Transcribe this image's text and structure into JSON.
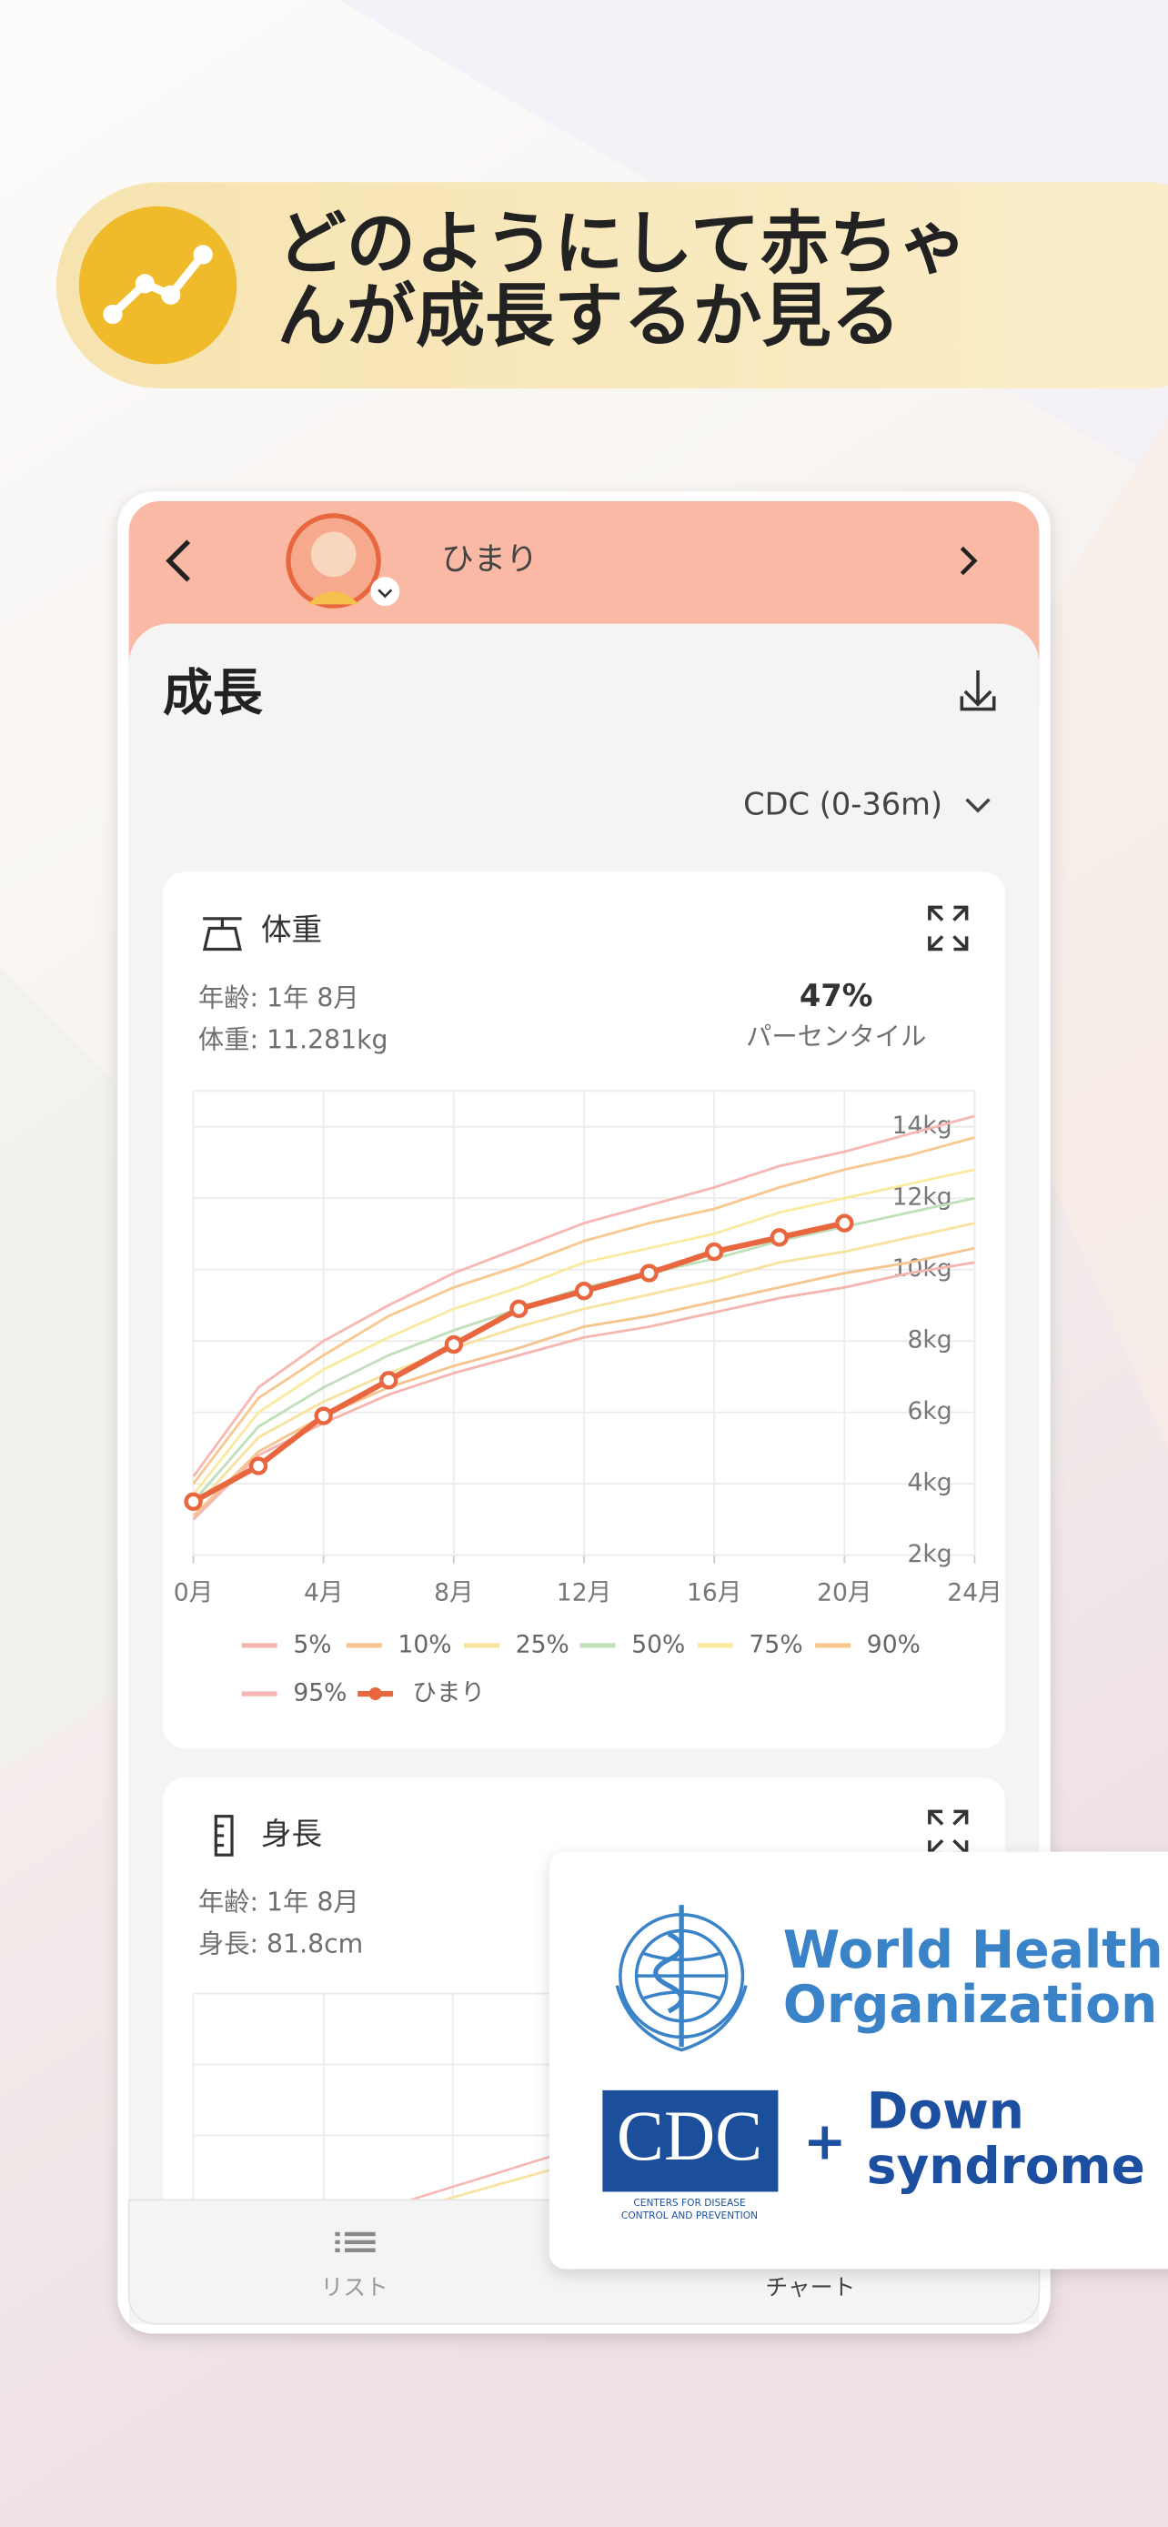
{
  "banner": {
    "line1": "どのようにして赤ちゃ",
    "line2": "んが成長するか見る"
  },
  "header": {
    "child_name": "ひまり"
  },
  "section": {
    "title": "成長",
    "standard": "CDC (0-36m)"
  },
  "weight_card": {
    "title": "体重",
    "age": "年齢: 1年 8月",
    "weight": "体重: 11.281kg",
    "percentile": "47%",
    "percentile_label": "パーセンタイル"
  },
  "chart_data": {
    "type": "line",
    "x": [
      0,
      2,
      4,
      6,
      8,
      10,
      12,
      14,
      16,
      18,
      20,
      22,
      24
    ],
    "xlim": [
      0,
      24
    ],
    "xticks": [
      {
        "value": 0,
        "label": "0月"
      },
      {
        "value": 4,
        "label": "4月"
      },
      {
        "value": 8,
        "label": "8月"
      },
      {
        "value": 12,
        "label": "12月"
      },
      {
        "value": 16,
        "label": "16月"
      },
      {
        "value": 20,
        "label": "20月"
      },
      {
        "value": 24,
        "label": "24月"
      }
    ],
    "ylim": [
      2,
      15
    ],
    "yticks": [
      {
        "value": 2,
        "label": "2kg"
      },
      {
        "value": 4,
        "label": "4kg"
      },
      {
        "value": 6,
        "label": "6kg"
      },
      {
        "value": 8,
        "label": "8kg"
      },
      {
        "value": 10,
        "label": "10kg"
      },
      {
        "value": 12,
        "label": "12kg"
      },
      {
        "value": 14,
        "label": "14kg"
      }
    ],
    "grid": true,
    "series": [
      {
        "name": "5%",
        "color": "#f5b5b0",
        "values": [
          3.0,
          4.8,
          5.7,
          6.5,
          7.1,
          7.6,
          8.1,
          8.4,
          8.8,
          9.2,
          9.5,
          9.9,
          10.2
        ]
      },
      {
        "name": "10%",
        "color": "#f6c48e",
        "values": [
          3.1,
          4.9,
          5.9,
          6.7,
          7.3,
          7.8,
          8.4,
          8.7,
          9.1,
          9.5,
          9.9,
          10.2,
          10.6
        ]
      },
      {
        "name": "25%",
        "color": "#f8e2a0",
        "values": [
          3.3,
          5.3,
          6.3,
          7.1,
          7.8,
          8.4,
          8.9,
          9.3,
          9.7,
          10.2,
          10.5,
          10.9,
          11.3
        ]
      },
      {
        "name": "50%",
        "color": "#bfe0b8",
        "values": [
          3.5,
          5.6,
          6.7,
          7.6,
          8.3,
          8.9,
          9.5,
          9.9,
          10.3,
          10.8,
          11.2,
          11.6,
          12.0
        ]
      },
      {
        "name": "75%",
        "color": "#faeaa0",
        "values": [
          3.7,
          6.0,
          7.2,
          8.1,
          8.9,
          9.5,
          10.2,
          10.6,
          11.0,
          11.6,
          12.0,
          12.4,
          12.8
        ]
      },
      {
        "name": "90%",
        "color": "#f8c890",
        "values": [
          4.0,
          6.4,
          7.6,
          8.7,
          9.5,
          10.1,
          10.8,
          11.3,
          11.7,
          12.3,
          12.8,
          13.2,
          13.7
        ]
      },
      {
        "name": "95%",
        "color": "#f7b8b4",
        "values": [
          4.2,
          6.7,
          8.0,
          9.0,
          9.9,
          10.6,
          11.3,
          11.8,
          12.3,
          12.9,
          13.3,
          13.8,
          14.3
        ]
      },
      {
        "name": "ひまり",
        "color": "#e8673f",
        "values": [
          3.5,
          4.5,
          5.9,
          6.9,
          7.9,
          8.9,
          9.4,
          9.9,
          10.5,
          10.9,
          11.3,
          null,
          null
        ]
      }
    ]
  },
  "height_card": {
    "title": "身長",
    "age": "年齢: 1年 8月",
    "height": "身長: 81.8cm"
  },
  "tabs": {
    "list": "リスト",
    "chart": "チャート"
  },
  "logos": {
    "who_line1": "World Health",
    "who_line2": "Organization",
    "cdc": "CDC",
    "cdc_sub1": "CENTERS FOR DISEASE",
    "cdc_sub2": "CONTROL AND PREVENTION",
    "plus": "+",
    "down1": "Down",
    "down2": "syndrome"
  }
}
